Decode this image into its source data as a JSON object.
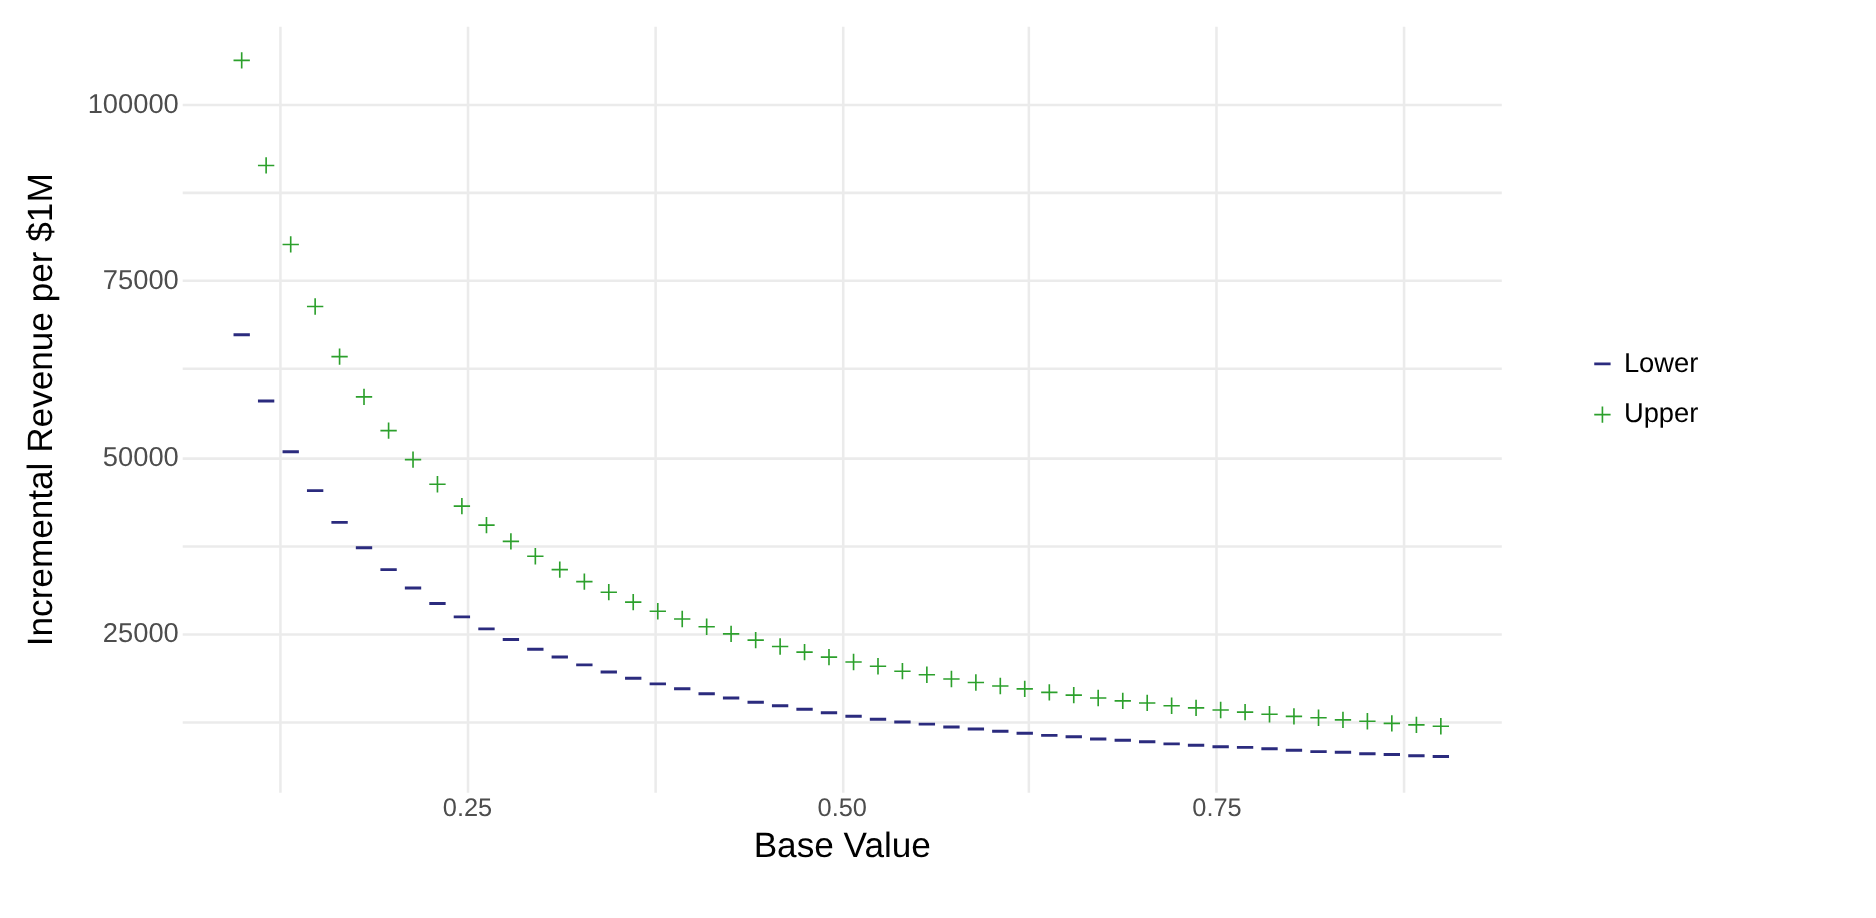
{
  "chart_data": {
    "type": "scatter",
    "xlabel": "Base Value",
    "ylabel": "Incremental Revenue per $1M",
    "x": [
      0.1,
      0.1163,
      0.1327,
      0.149,
      0.1653,
      0.1816,
      0.198,
      0.2143,
      0.2306,
      0.2469,
      0.2633,
      0.2796,
      0.2959,
      0.3122,
      0.3286,
      0.3449,
      0.3612,
      0.3776,
      0.3939,
      0.4102,
      0.4265,
      0.4429,
      0.4592,
      0.4755,
      0.4918,
      0.5082,
      0.5245,
      0.5408,
      0.5571,
      0.5735,
      0.5898,
      0.6061,
      0.6224,
      0.6388,
      0.6551,
      0.6714,
      0.6878,
      0.7041,
      0.7204,
      0.7367,
      0.7531,
      0.7694,
      0.7857,
      0.802,
      0.8184,
      0.8347,
      0.851,
      0.8673,
      0.8837,
      0.9
    ],
    "series": [
      {
        "name": "Lower",
        "color": "#2b2b7e",
        "values": [
          67300,
          57900,
          50700,
          45200,
          40700,
          37100,
          34000,
          31400,
          29200,
          27300,
          25600,
          24100,
          22700,
          21600,
          20500,
          19500,
          18600,
          17800,
          17100,
          16400,
          15800,
          15200,
          14700,
          14200,
          13700,
          13200,
          12800,
          12400,
          12100,
          11700,
          11400,
          11100,
          10800,
          10500,
          10300,
          10000,
          9800,
          9600,
          9300,
          9100,
          8900,
          8800,
          8600,
          8400,
          8200,
          8100,
          7900,
          7800,
          7600,
          7500
        ]
      },
      {
        "name": "Upper",
        "color": "#2ca02c",
        "marker": "cross",
        "values": [
          106200,
          91300,
          80100,
          71300,
          64200,
          58500,
          53700,
          49600,
          46100,
          43000,
          40300,
          38000,
          35900,
          34000,
          32300,
          30800,
          29400,
          28100,
          27000,
          25900,
          24900,
          24000,
          23100,
          22300,
          21600,
          20900,
          20300,
          19600,
          19100,
          18500,
          18000,
          17500,
          17100,
          16600,
          16200,
          15800,
          15400,
          15100,
          14700,
          14400,
          14100,
          13800,
          13500,
          13200,
          13000,
          12700,
          12500,
          12200,
          12000,
          11800
        ]
      }
    ],
    "xlim": [
      0.06,
      0.94
    ],
    "xticks": [
      {
        "value": 0.125,
        "label": null
      },
      0.25,
      {
        "value": 0.375,
        "label": null
      },
      {
        "value": 0.5,
        "label": "0.50"
      },
      {
        "value": 0.625,
        "label": null
      },
      0.75,
      {
        "value": 0.875,
        "label": null
      }
    ],
    "ylim": [
      2500,
      111100
    ],
    "yticks": [
      {
        "value": 12500,
        "label": null
      },
      25000,
      {
        "value": 37500,
        "label": null
      },
      50000,
      {
        "value": 62500,
        "label": null
      },
      75000,
      {
        "value": 87500,
        "label": null
      },
      100000
    ],
    "grid": true,
    "legend": "right"
  }
}
